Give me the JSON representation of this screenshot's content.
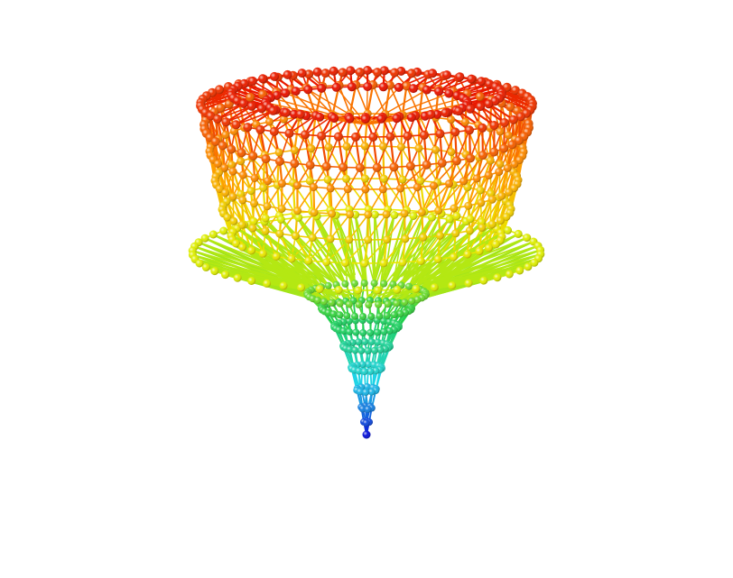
{
  "scene": {
    "background": "#ffffff",
    "subject": "3d-graph-tree-visualization",
    "render_style": "ball-and-stick",
    "color_map": "rainbow",
    "palette": {
      "root": "#0a14d8",
      "stem": "#1fd4e6",
      "mid": "#22d04a",
      "flare": "#e8f000",
      "upper": "#ff9a00",
      "rim": "#e81400"
    }
  }
}
